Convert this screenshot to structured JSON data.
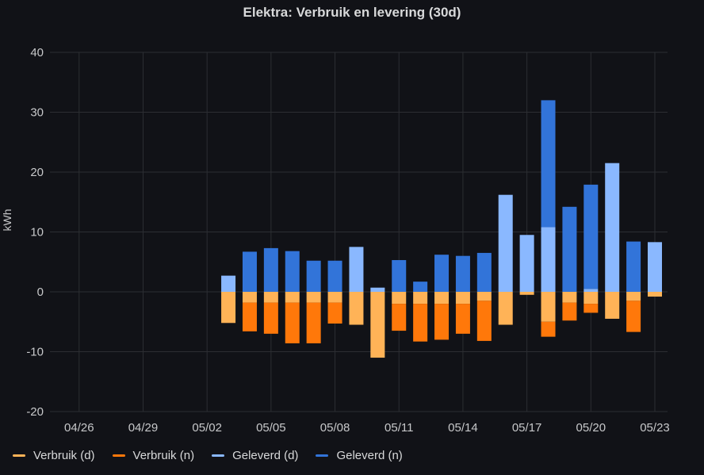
{
  "title": "Elektra: Verbruik en levering (30d)",
  "chart_data": {
    "type": "bar",
    "stacked": true,
    "ylabel": "kWh",
    "xlabel": "",
    "ylim": [
      -20,
      40
    ],
    "yticks": [
      -20,
      -10,
      0,
      10,
      20,
      30,
      40
    ],
    "x_start": "04/24",
    "x_end": "05/23",
    "x_tick_labels": [
      "04/26",
      "04/29",
      "05/02",
      "05/05",
      "05/08",
      "05/11",
      "05/14",
      "05/17",
      "05/20",
      "05/23"
    ],
    "categories": [
      "05/03",
      "05/04",
      "05/05",
      "05/06",
      "05/07",
      "05/08",
      "05/09",
      "05/10",
      "05/11",
      "05/12",
      "05/13",
      "05/14",
      "05/15",
      "05/16",
      "05/17",
      "05/18",
      "05/19",
      "05/20",
      "05/21",
      "05/22",
      "05/23"
    ],
    "grid": true,
    "legend_position": "bottom-left",
    "series": [
      {
        "name": "Verbruik (d)",
        "color": "#ffb357",
        "sign": "negative",
        "values": [
          5.2,
          1.8,
          1.8,
          1.8,
          1.8,
          1.8,
          5.5,
          11.0,
          2.0,
          2.0,
          2.0,
          2.0,
          1.5,
          5.5,
          0.5,
          5.0,
          1.8,
          2.0,
          4.5,
          1.5,
          0.8
        ]
      },
      {
        "name": "Verbruik (n)",
        "color": "#ff780a",
        "sign": "negative",
        "values": [
          0,
          4.8,
          5.2,
          6.8,
          6.8,
          3.5,
          0,
          0,
          4.5,
          6.3,
          6.0,
          5.0,
          6.7,
          0,
          0,
          2.5,
          3.0,
          1.5,
          0,
          5.2,
          0
        ]
      },
      {
        "name": "Geleverd (d)",
        "color": "#8ab8ff",
        "sign": "positive",
        "values": [
          2.7,
          0,
          0,
          0,
          0,
          0,
          7.5,
          0.7,
          0,
          0,
          0,
          0,
          0,
          16.2,
          9.5,
          10.8,
          0,
          0.5,
          21.5,
          0,
          8.3
        ]
      },
      {
        "name": "Geleverd (n)",
        "color": "#3274d9",
        "sign": "positive",
        "values": [
          0,
          6.7,
          7.3,
          6.8,
          5.2,
          5.2,
          0,
          0,
          5.3,
          1.7,
          6.2,
          6.0,
          6.5,
          0,
          0,
          21.2,
          14.2,
          17.4,
          0,
          8.4,
          0
        ]
      }
    ]
  }
}
